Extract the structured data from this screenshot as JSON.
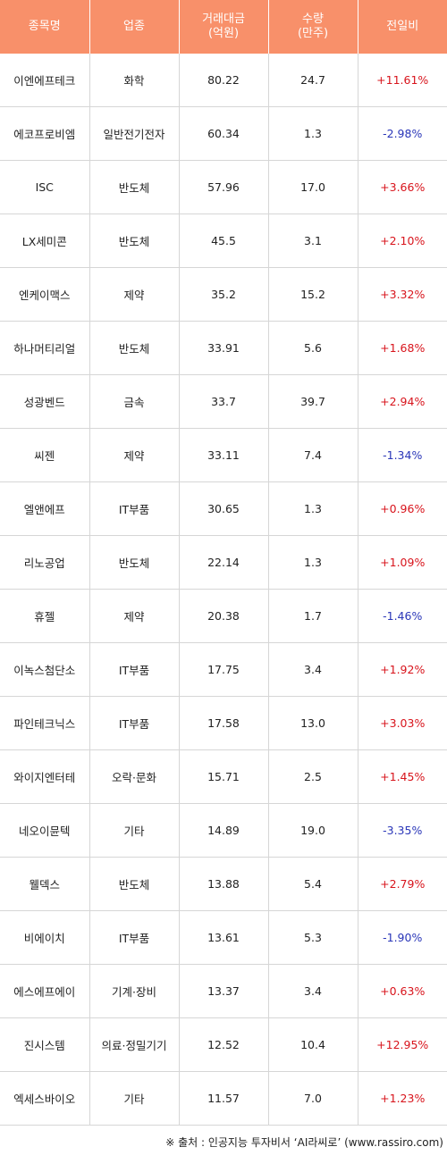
{
  "chart_data": {
    "type": "table",
    "columns": [
      "종목명",
      "업종",
      "거래대금\n(억원)",
      "수량\n(만주)",
      "전일비"
    ],
    "rows": [
      [
        "이엔에프테크",
        "화학",
        "80.22",
        "24.7",
        "+11.61%"
      ],
      [
        "에코프로비엠",
        "일반전기전자",
        "60.34",
        "1.3",
        "-2.98%"
      ],
      [
        "ISC",
        "반도체",
        "57.96",
        "17.0",
        "+3.66%"
      ],
      [
        "LX세미콘",
        "반도체",
        "45.5",
        "3.1",
        "+2.10%"
      ],
      [
        "엔케이맥스",
        "제약",
        "35.2",
        "15.2",
        "+3.32%"
      ],
      [
        "하나머티리얼",
        "반도체",
        "33.91",
        "5.6",
        "+1.68%"
      ],
      [
        "성광벤드",
        "금속",
        "33.7",
        "39.7",
        "+2.94%"
      ],
      [
        "씨젠",
        "제약",
        "33.11",
        "7.4",
        "-1.34%"
      ],
      [
        "엘앤에프",
        "IT부품",
        "30.65",
        "1.3",
        "+0.96%"
      ],
      [
        "리노공업",
        "반도체",
        "22.14",
        "1.3",
        "+1.09%"
      ],
      [
        "휴젤",
        "제약",
        "20.38",
        "1.7",
        "-1.46%"
      ],
      [
        "이녹스첨단소",
        "IT부품",
        "17.75",
        "3.4",
        "+1.92%"
      ],
      [
        "파인테크닉스",
        "IT부품",
        "17.58",
        "13.0",
        "+3.03%"
      ],
      [
        "와이지엔터테",
        "오락·문화",
        "15.71",
        "2.5",
        "+1.45%"
      ],
      [
        "네오이뮨텍",
        "기타",
        "14.89",
        "19.0",
        "-3.35%"
      ],
      [
        "웰덱스",
        "반도체",
        "13.88",
        "5.4",
        "+2.79%"
      ],
      [
        "비에이치",
        "IT부품",
        "13.61",
        "5.3",
        "-1.90%"
      ],
      [
        "에스에프에이",
        "기계·장비",
        "13.37",
        "3.4",
        "+0.63%"
      ],
      [
        "진시스템",
        "의료·정밀기기",
        "12.52",
        "10.4",
        "+12.95%"
      ],
      [
        "엑세스바이오",
        "기타",
        "11.57",
        "7.0",
        "+1.23%"
      ]
    ]
  },
  "source": "※ 출처 : 인공지능 투자비서 ‘AI라씨로’ (www.rassiro.com)",
  "colors": {
    "header_bg": "#f8906a",
    "header_text": "#ffffff",
    "positive": "#d8141c",
    "negative": "#2a36b8",
    "grid": "#d6d6d6"
  }
}
